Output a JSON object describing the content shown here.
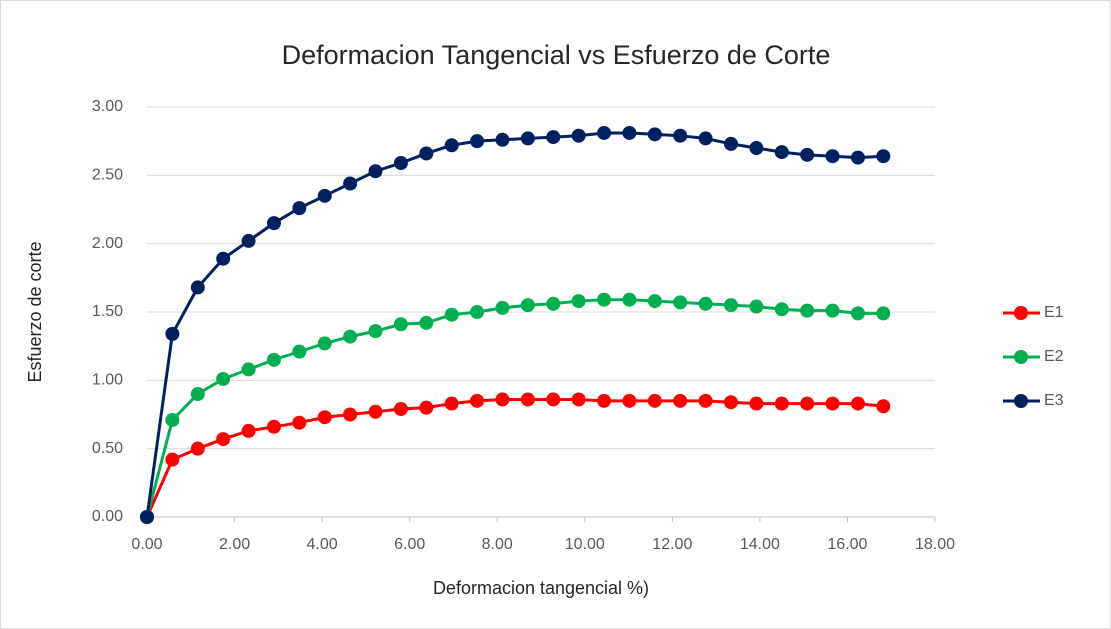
{
  "chart_data": {
    "type": "line",
    "title": "Deformacion Tangencial vs Esfuerzo de Corte",
    "xlabel": "Deformacion tangencial %)",
    "ylabel": "Esfuerzo de corte",
    "x": [
      0,
      0.58,
      1.16,
      1.74,
      2.32,
      2.9,
      3.48,
      4.06,
      4.64,
      5.22,
      5.8,
      6.38,
      6.96,
      7.54,
      8.12,
      8.7,
      9.28,
      9.86,
      10.44,
      11.02,
      11.6,
      12.18,
      12.76,
      13.34,
      13.92,
      14.5,
      15.08,
      15.66,
      16.24,
      16.82
    ],
    "series": [
      {
        "name": "E1",
        "color": "#ff0000",
        "values": [
          0,
          0.42,
          0.5,
          0.57,
          0.63,
          0.66,
          0.69,
          0.73,
          0.75,
          0.77,
          0.79,
          0.8,
          0.83,
          0.85,
          0.86,
          0.86,
          0.86,
          0.86,
          0.85,
          0.85,
          0.85,
          0.85,
          0.85,
          0.84,
          0.83,
          0.83,
          0.83,
          0.83,
          0.83,
          0.81
        ]
      },
      {
        "name": "E2",
        "color": "#00b050",
        "values": [
          0,
          0.71,
          0.9,
          1.01,
          1.08,
          1.15,
          1.21,
          1.27,
          1.32,
          1.36,
          1.41,
          1.42,
          1.48,
          1.5,
          1.53,
          1.55,
          1.56,
          1.58,
          1.59,
          1.59,
          1.58,
          1.57,
          1.56,
          1.55,
          1.54,
          1.52,
          1.51,
          1.51,
          1.49,
          1.49
        ]
      },
      {
        "name": "E3",
        "color": "#002060",
        "values": [
          0,
          1.34,
          1.68,
          1.89,
          2.02,
          2.15,
          2.26,
          2.35,
          2.44,
          2.53,
          2.59,
          2.66,
          2.72,
          2.75,
          2.76,
          2.77,
          2.78,
          2.79,
          2.81,
          2.81,
          2.8,
          2.79,
          2.77,
          2.73,
          2.7,
          2.67,
          2.65,
          2.64,
          2.63,
          2.64
        ]
      }
    ],
    "xlim": [
      0,
      18
    ],
    "xticks": [
      {
        "value": 0,
        "label": "0.00"
      },
      {
        "value": 2,
        "label": "2.00"
      },
      {
        "value": 4,
        "label": "4.00"
      },
      {
        "value": 6,
        "label": "6.00"
      },
      {
        "value": 8,
        "label": "8.00"
      },
      {
        "value": 10,
        "label": "10.00"
      },
      {
        "value": 12,
        "label": "12.00"
      },
      {
        "value": 14,
        "label": "14.00"
      },
      {
        "value": 16,
        "label": "16.00"
      },
      {
        "value": 18,
        "label": "18.00"
      }
    ],
    "ylim": [
      0,
      3
    ],
    "yticks": [
      {
        "value": 0,
        "label": "0.00"
      },
      {
        "value": 0.5,
        "label": "0.50"
      },
      {
        "value": 1,
        "label": "1.00"
      },
      {
        "value": 1.5,
        "label": "1.50"
      },
      {
        "value": 2,
        "label": "2.00"
      },
      {
        "value": 2.5,
        "label": "2.50"
      },
      {
        "value": 3,
        "label": "3.00"
      }
    ],
    "grid": true,
    "legend": "right"
  }
}
